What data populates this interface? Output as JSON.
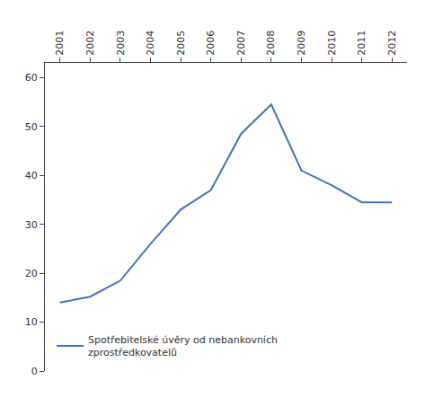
{
  "chart_data": {
    "type": "line",
    "x": [
      2001,
      2002,
      2003,
      2004,
      2005,
      2006,
      2007,
      2008,
      2009,
      2010,
      2011,
      2012
    ],
    "series": [
      {
        "name": "Spotřebitelské úvěry od nebankovních\nzprostředkovatelů",
        "color": "#4472C4",
        "values": [
          14.0,
          15.2,
          18.5,
          26.0,
          33.0,
          37.0,
          48.5,
          54.5,
          41.0,
          38.0,
          34.5,
          34.5
        ]
      }
    ],
    "xlim": [
      2000.5,
      2012.5
    ],
    "xticks": [
      2001,
      2002,
      2003,
      2004,
      2005,
      2006,
      2007,
      2008,
      2009,
      2010,
      2011,
      2012
    ],
    "ylim": [
      0,
      63
    ],
    "yticks": [
      0,
      10,
      20,
      30,
      40,
      50,
      60
    ],
    "grid": false,
    "legend": "lower left"
  }
}
